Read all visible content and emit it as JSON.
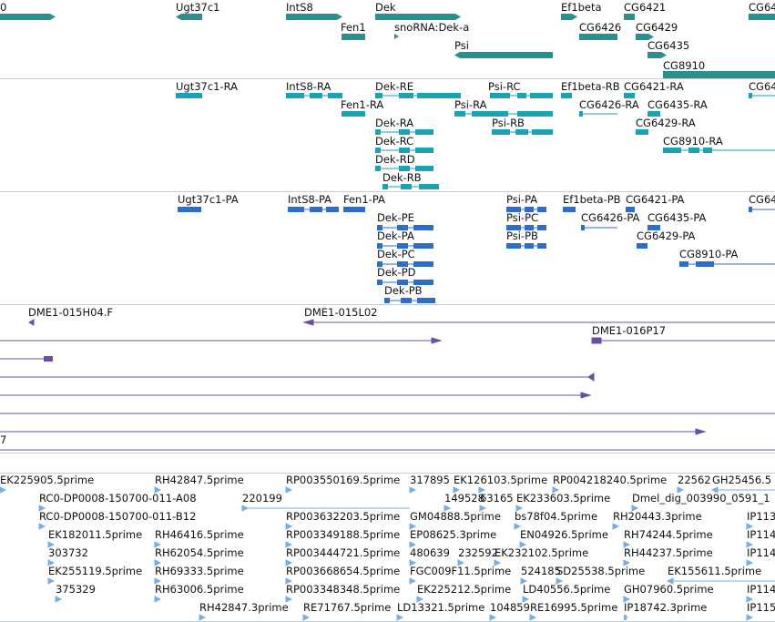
{
  "colors": {
    "gene": "#2a8f8f",
    "transcript": "#1aa3b3",
    "protein": "#2e6ec8",
    "clone": "#6a4fa0",
    "est": "#78aee0",
    "divider": "#c4ccd4"
  },
  "tracks": {
    "genes": {
      "labels": [
        "0",
        "Ugt37c1",
        "IntS8",
        "Dek",
        "Fen1",
        "snoRNA:Dek-a",
        "Psi",
        "Ef1beta",
        "CG6421",
        "CG6426",
        "CG6429",
        "CG6435",
        "CG8910",
        "CG64"
      ]
    },
    "transcripts": {
      "labels": [
        "Ugt37c1-RA",
        "IntS8-RA",
        "Dek-RE",
        "Psi-RC",
        "Ef1beta-RB",
        "CG6421-RA",
        "CG64",
        "Fen1-RA",
        "Psi-RA",
        "CG6426-RA",
        "CG6435-RA",
        "Psi-RB",
        "Dek-RA",
        "CG6429-RA",
        "Dek-RC",
        "CG8910-RA",
        "Dek-RD",
        "Dek-RB"
      ]
    },
    "proteins": {
      "labels": [
        "Ugt37c1-PA",
        "IntS8-PA",
        "Fen1-PA",
        "Psi-PA",
        "Ef1beta-PB",
        "CG6421-PA",
        "CG64",
        "Dek-PE",
        "Psi-PC",
        "CG6426-PA",
        "CG6435-PA",
        "Dek-PA",
        "Psi-PB",
        "CG6429-PA",
        "Dek-PC",
        "CG8910-PA",
        "Dek-PD",
        "Dek-PB"
      ]
    },
    "clones": {
      "labels": [
        "DME1-015H04.F",
        "DME1-015L02",
        "DME1-016P17",
        "7"
      ]
    },
    "ests": {
      "labels": [
        "EK225905.5prime",
        "RH42847.5prime",
        "RP003550169.5prime",
        "317895",
        "EK126103.5prime",
        "RP004218240.5prime",
        "22562",
        "GH25456.5",
        "RC0-DP0008-150700-011-A08",
        "220199",
        "149528",
        "63165",
        "EK233603.5prime",
        "Dmel_dig_003990_0591_1",
        "RC0-DP0008-150700-011-B12",
        "RP003632203.5prime",
        "GM04888.5prime",
        "bs78f04.5prime",
        "RH20443.3prime",
        "IP113",
        "EK182011.5prime",
        "RH46416.5prime",
        "RP003349188.5prime",
        "EP08625.3prime",
        "EN04926.5prime",
        "RH74244.5prime",
        "IP114",
        "303732",
        "RH62054.5prime",
        "RP003444721.5prime",
        "480639",
        "232592",
        "EK232102.5prime",
        "RH44237.5prime",
        "IP114",
        "EK255119.5prime",
        "RH69333.5prime",
        "RP003668654.5prime",
        "FGC009F11.5prime",
        "524185",
        "SD25538.5prime",
        "EK155611.5prime",
        "375329",
        "RH63006.5prime",
        "RP003348348.5prime",
        "EK225212.5prime",
        "LD40556.5prime",
        "GH07960.5prime",
        "IP114",
        "RH42847.3prime",
        "RE71767.5prime",
        "LD13321.5prime",
        "104859",
        "RE16995.5prime",
        "IP18742.3prime",
        "IP115"
      ]
    }
  }
}
